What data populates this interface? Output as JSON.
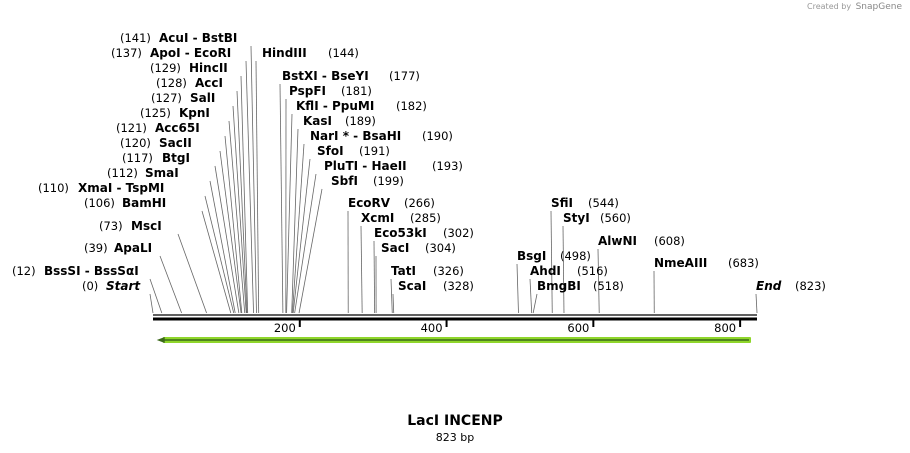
{
  "credit": {
    "prefix": "Created by",
    "brand": "SnapGene"
  },
  "sequence": {
    "name": "LacI INCENP",
    "length_label": "823 bp",
    "length": 823
  },
  "axis_ticks": [
    "200",
    "400",
    "600",
    "800"
  ],
  "feature": {
    "name": "LacI INCENP",
    "direction": "reverse",
    "color": "#8fd62b",
    "from": 1,
    "to": 823
  },
  "sites": [
    {
      "name": "Start",
      "pos": "(0)",
      "bp": 0,
      "italic": true
    },
    {
      "name": "BssSI - BssSαI",
      "pos": "(12)",
      "bp": 12
    },
    {
      "name": "ApaLI",
      "pos": "(39)",
      "bp": 39
    },
    {
      "name": "MscI",
      "pos": "(73)",
      "bp": 73
    },
    {
      "name": "BamHI",
      "pos": "(106)",
      "bp": 106
    },
    {
      "name": "XmaI - TspMI",
      "pos": "(110)",
      "bp": 110
    },
    {
      "name": "SmaI",
      "pos": "(112)",
      "bp": 112
    },
    {
      "name": "BtgI",
      "pos": "(117)",
      "bp": 117
    },
    {
      "name": "SacII",
      "pos": "(120)",
      "bp": 120
    },
    {
      "name": "Acc65I",
      "pos": "(121)",
      "bp": 121
    },
    {
      "name": "KpnI",
      "pos": "(125)",
      "bp": 125
    },
    {
      "name": "SalI",
      "pos": "(127)",
      "bp": 127
    },
    {
      "name": "AccI",
      "pos": "(128)",
      "bp": 128
    },
    {
      "name": "HincII",
      "pos": "(129)",
      "bp": 129
    },
    {
      "name": "ApoI - EcoRI",
      "pos": "(137)",
      "bp": 137
    },
    {
      "name": "AcuI - BstBI",
      "pos": "(141)",
      "bp": 141
    },
    {
      "name": "HindIII",
      "pos": "(144)",
      "bp": 144
    },
    {
      "name": "BstXI - BseYI",
      "pos": "(177)",
      "bp": 177
    },
    {
      "name": "PspFI",
      "pos": "(181)",
      "bp": 181
    },
    {
      "name": "KflI - PpuMI",
      "pos": "(182)",
      "bp": 182
    },
    {
      "name": "KasI",
      "pos": "(189)",
      "bp": 189
    },
    {
      "name": "NarI * - BsaHI",
      "pos": "(190)",
      "bp": 190
    },
    {
      "name": "SfoI",
      "pos": "(191)",
      "bp": 191
    },
    {
      "name": "PluTI - HaeII",
      "pos": "(193)",
      "bp": 193
    },
    {
      "name": "SbfI",
      "pos": "(199)",
      "bp": 199
    },
    {
      "name": "EcoRV",
      "pos": "(266)",
      "bp": 266
    },
    {
      "name": "XcmI",
      "pos": "(285)",
      "bp": 285
    },
    {
      "name": "Eco53kI",
      "pos": "(302)",
      "bp": 302
    },
    {
      "name": "SacI",
      "pos": "(304)",
      "bp": 304
    },
    {
      "name": "TatI",
      "pos": "(326)",
      "bp": 326
    },
    {
      "name": "ScaI",
      "pos": "(328)",
      "bp": 328
    },
    {
      "name": "BsgI",
      "pos": "(498)",
      "bp": 498
    },
    {
      "name": "AhdI",
      "pos": "(516)",
      "bp": 516
    },
    {
      "name": "BmgBI",
      "pos": "(518)",
      "bp": 518
    },
    {
      "name": "SfiI",
      "pos": "(544)",
      "bp": 544
    },
    {
      "name": "StyI",
      "pos": "(560)",
      "bp": 560
    },
    {
      "name": "AlwNI",
      "pos": "(608)",
      "bp": 608
    },
    {
      "name": "NmeAIII",
      "pos": "(683)",
      "bp": 683
    },
    {
      "name": "End",
      "pos": "(823)",
      "bp": 823,
      "italic": true
    }
  ]
}
